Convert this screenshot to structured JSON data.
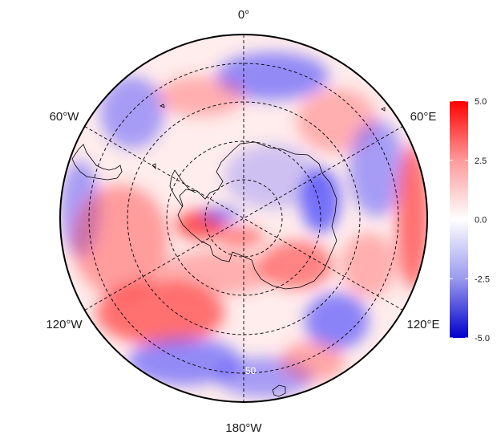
{
  "longitude_labels": {
    "top": "0°",
    "upper_left": "60°W",
    "upper_right": "60°E",
    "lower_left": "120°W",
    "lower_right": "120°E",
    "bottom": "180°W"
  },
  "latitude_ring_label": "50",
  "colorbar": {
    "ticks": [
      "5.0",
      "2.5",
      "0.0",
      "-2.5",
      "-5.0"
    ],
    "tick_values": [
      5.0,
      2.5,
      0.0,
      -2.5,
      -5.0
    ],
    "min": -5.0,
    "max": 5.0,
    "colors": {
      "high": "#ff0000",
      "mid": "#ffffff",
      "low": "#0000cc"
    }
  },
  "map": {
    "projection": "south-polar-stereographic",
    "region": "Antarctica and Southern Ocean",
    "graticule": "dashed",
    "field_colors": {
      "positive": "#ff3b3b",
      "neutral": "#ffffff",
      "negative": "#3b3bff"
    }
  }
}
